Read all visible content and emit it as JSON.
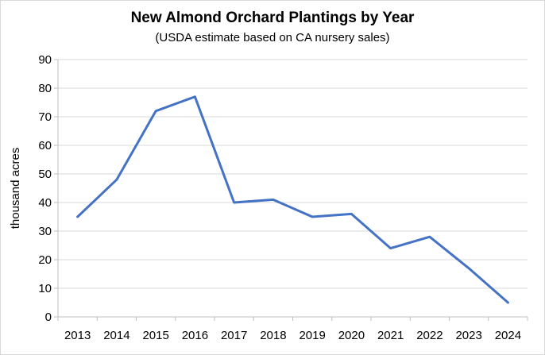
{
  "chart_data": {
    "type": "line",
    "title": "New Almond Orchard Plantings by Year",
    "subtitle": "(USDA estimate based on CA nursery sales)",
    "ylabel": "thousand acres",
    "xlabel": "",
    "categories": [
      "2013",
      "2014",
      "2015",
      "2016",
      "2017",
      "2018",
      "2019",
      "2020",
      "2021",
      "2022",
      "2023",
      "2024"
    ],
    "series": [
      {
        "values": [
          35,
          48,
          72,
          77,
          40,
          41,
          35,
          36,
          24,
          28,
          17,
          5
        ],
        "color": "#4472c4"
      }
    ],
    "ylim": [
      0,
      90
    ],
    "yticks": [
      0,
      10,
      20,
      30,
      40,
      50,
      60,
      70,
      80,
      90
    ],
    "grid": true,
    "legend": "none"
  }
}
